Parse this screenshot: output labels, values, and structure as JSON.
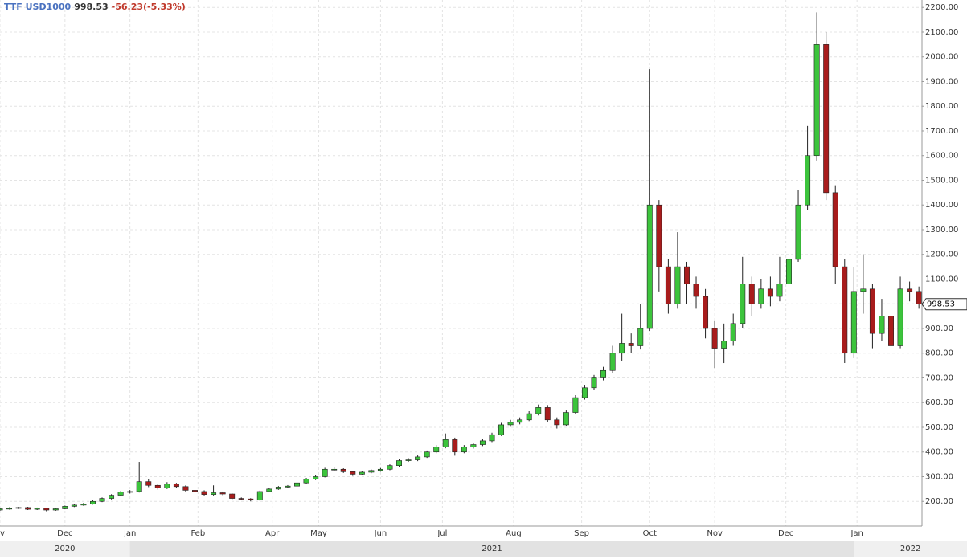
{
  "chart_data": {
    "type": "candlestick",
    "title": "TTF USD1000",
    "change": "-56.23(-5.33%)",
    "up_color": "#3cc43c",
    "down_color": "#a81c1c",
    "grid": true,
    "xlim": [
      0,
      298
    ],
    "ylim": [
      100,
      2230
    ],
    "xticks": [
      {
        "value": 0,
        "label": "v"
      },
      {
        "value": 21,
        "label": "Dec"
      },
      {
        "value": 42,
        "label": "Jan"
      },
      {
        "value": 64,
        "label": "Feb"
      },
      {
        "value": 88,
        "label": "Apr"
      },
      {
        "value": 103,
        "label": "May"
      },
      {
        "value": 123,
        "label": "Jun"
      },
      {
        "value": 143,
        "label": "Jul"
      },
      {
        "value": 166,
        "label": "Aug"
      },
      {
        "value": 188,
        "label": "Sep"
      },
      {
        "value": 210,
        "label": "Oct"
      },
      {
        "value": 231,
        "label": "Nov"
      },
      {
        "value": 254,
        "label": "Dec"
      },
      {
        "value": 277,
        "label": "Jan"
      }
    ],
    "year_ticks": [
      {
        "value": 0,
        "label": "2020"
      },
      {
        "value": 42,
        "label": "2021"
      },
      {
        "value": 276,
        "label": "2022"
      }
    ],
    "yticks": [
      {
        "value": 200,
        "label": "200.00"
      },
      {
        "value": 300,
        "label": "300.00"
      },
      {
        "value": 400,
        "label": "400.00"
      },
      {
        "value": 500,
        "label": "500.00"
      },
      {
        "value": 600,
        "label": "600.00"
      },
      {
        "value": 700,
        "label": "700.00"
      },
      {
        "value": 800,
        "label": "800.00"
      },
      {
        "value": 900,
        "label": "900.00"
      },
      {
        "value": 1000,
        "label": "1000.00"
      },
      {
        "value": 1100,
        "label": "1100.00"
      },
      {
        "value": 1200,
        "label": "1200.00"
      },
      {
        "value": 1300,
        "label": "1300.00"
      },
      {
        "value": 1400,
        "label": "1400.00"
      },
      {
        "value": 1500,
        "label": "1500.00"
      },
      {
        "value": 1600,
        "label": "1600.00"
      },
      {
        "value": 1700,
        "label": "1700.00"
      },
      {
        "value": 1800,
        "label": "1800.00"
      },
      {
        "value": 1900,
        "label": "1900.00"
      },
      {
        "value": 2000,
        "label": "2000.00"
      },
      {
        "value": 2100,
        "label": "2100.00"
      },
      {
        "value": 2200,
        "label": "2200.00"
      }
    ],
    "x": [
      0,
      3,
      6,
      9,
      12,
      15,
      18,
      21,
      24,
      27,
      30,
      33,
      36,
      39,
      42,
      45,
      48,
      51,
      54,
      57,
      60,
      63,
      66,
      69,
      72,
      75,
      78,
      81,
      84,
      87,
      90,
      93,
      96,
      99,
      102,
      105,
      108,
      111,
      114,
      117,
      120,
      123,
      126,
      129,
      132,
      135,
      138,
      141,
      144,
      147,
      150,
      153,
      156,
      159,
      162,
      165,
      168,
      171,
      174,
      177,
      180,
      183,
      186,
      189,
      192,
      195,
      198,
      201,
      204,
      207,
      210,
      213,
      216,
      219,
      222,
      225,
      228,
      231,
      234,
      237,
      240,
      243,
      246,
      249,
      252,
      255,
      258,
      261,
      264,
      267,
      270,
      273,
      276,
      279,
      282,
      285,
      288,
      291,
      294,
      297
    ],
    "open": [
      165,
      170,
      172,
      175,
      168,
      172,
      165,
      170,
      180,
      185,
      190,
      200,
      212,
      225,
      238,
      240,
      280,
      265,
      255,
      270,
      260,
      245,
      240,
      228,
      235,
      230,
      212,
      210,
      205,
      240,
      250,
      258,
      262,
      275,
      290,
      300,
      330,
      330,
      320,
      310,
      318,
      325,
      330,
      345,
      365,
      368,
      380,
      400,
      420,
      450,
      400,
      420,
      430,
      445,
      470,
      510,
      520,
      530,
      555,
      580,
      530,
      510,
      560,
      620,
      660,
      700,
      730,
      800,
      840,
      830,
      900,
      1400,
      1150,
      1000,
      1150,
      1080,
      1030,
      900,
      820,
      850,
      920,
      1080,
      1000,
      1060,
      1030,
      1080,
      1180,
      1400,
      1600,
      2050,
      1450,
      1150,
      800,
      1050,
      1060,
      880,
      950,
      830,
      1060,
      1050
    ],
    "high": [
      174,
      176,
      178,
      178,
      175,
      174,
      173,
      183,
      188,
      194,
      204,
      216,
      229,
      242,
      246,
      360,
      290,
      272,
      278,
      275,
      265,
      250,
      245,
      265,
      240,
      233,
      216,
      213,
      244,
      254,
      262,
      266,
      279,
      295,
      305,
      336,
      338,
      334,
      324,
      322,
      329,
      335,
      350,
      370,
      375,
      386,
      406,
      428,
      475,
      458,
      428,
      437,
      452,
      478,
      518,
      530,
      540,
      565,
      592,
      590,
      540,
      568,
      630,
      672,
      712,
      745,
      830,
      960,
      880,
      1000,
      1950,
      1420,
      1180,
      1290,
      1170,
      1110,
      1060,
      930,
      920,
      960,
      1190,
      1110,
      1100,
      1110,
      1190,
      1260,
      1460,
      1720,
      2180,
      2100,
      1480,
      1180,
      1150,
      1200,
      1080,
      1020,
      960,
      1110,
      1090,
      1070
    ],
    "low": [
      162,
      167,
      169,
      165,
      165,
      160,
      162,
      168,
      177,
      182,
      187,
      197,
      208,
      221,
      232,
      236,
      258,
      248,
      250,
      255,
      240,
      235,
      224,
      224,
      225,
      208,
      205,
      200,
      203,
      237,
      247,
      255,
      259,
      272,
      286,
      297,
      322,
      315,
      303,
      305,
      314,
      320,
      326,
      340,
      360,
      363,
      376,
      395,
      415,
      385,
      395,
      414,
      424,
      440,
      465,
      502,
      512,
      525,
      548,
      520,
      495,
      505,
      555,
      612,
      652,
      690,
      720,
      770,
      800,
      815,
      890,
      1050,
      960,
      980,
      1000,
      980,
      860,
      740,
      760,
      830,
      900,
      950,
      980,
      990,
      1010,
      1060,
      1170,
      1380,
      1580,
      1420,
      1080,
      760,
      780,
      960,
      820,
      850,
      810,
      820,
      1010,
      980
    ],
    "close": [
      170,
      172,
      175,
      168,
      172,
      165,
      170,
      180,
      185,
      190,
      200,
      212,
      225,
      238,
      240,
      280,
      265,
      255,
      270,
      260,
      245,
      240,
      228,
      235,
      230,
      212,
      210,
      205,
      240,
      250,
      258,
      262,
      275,
      290,
      300,
      330,
      330,
      320,
      310,
      318,
      325,
      330,
      345,
      365,
      368,
      380,
      400,
      420,
      450,
      400,
      420,
      430,
      445,
      470,
      510,
      520,
      530,
      555,
      580,
      530,
      510,
      560,
      620,
      660,
      700,
      730,
      800,
      840,
      830,
      900,
      1400,
      1150,
      1000,
      1150,
      1080,
      1030,
      900,
      820,
      850,
      920,
      1080,
      1000,
      1060,
      1030,
      1080,
      1180,
      1400,
      1600,
      2050,
      1450,
      1150,
      800,
      1050,
      1060,
      880,
      950,
      830,
      1060,
      1050,
      998.53
    ]
  }
}
